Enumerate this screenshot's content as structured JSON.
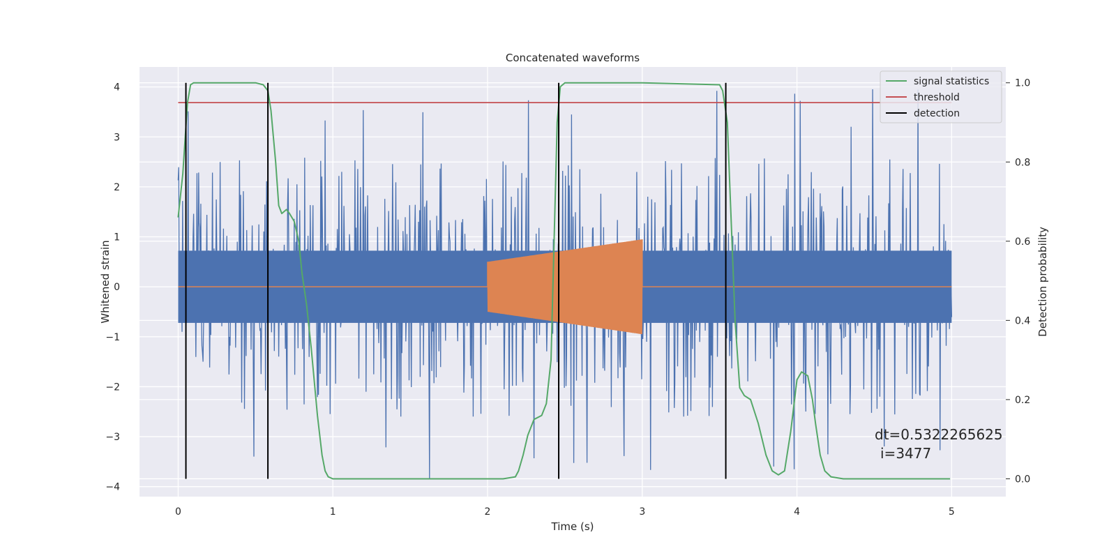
{
  "chart_data": {
    "type": "line",
    "title": "Concatenated waveforms",
    "xlabel": "Time (s)",
    "ylabel": "Whitened strain",
    "y2label": "Detection probability",
    "xlim": [
      -0.25,
      5.35
    ],
    "ylim": [
      -4.2,
      4.4
    ],
    "y2lim": [
      -0.045,
      1.04
    ],
    "xticks": [
      0,
      1,
      2,
      3,
      4,
      5
    ],
    "yticks": [
      -4,
      -3,
      -2,
      -1,
      0,
      1,
      2,
      3,
      4
    ],
    "y2ticks": [
      0.0,
      0.2,
      0.4,
      0.6,
      0.8,
      1.0
    ],
    "xtick_labels": [
      "0",
      "1",
      "2",
      "3",
      "4",
      "5"
    ],
    "ytick_labels": [
      "−4",
      "−3",
      "−2",
      "−1",
      "0",
      "1",
      "2",
      "3",
      "4"
    ],
    "y2tick_labels": [
      "0.0",
      "0.2",
      "0.4",
      "0.6",
      "0.8",
      "1.0"
    ],
    "grid": true,
    "legend_position": "top-right",
    "legend": [
      "signal statistics",
      "threshold",
      "detection"
    ],
    "annotation": {
      "line1": "dt=0.5322265625",
      "line2": "i=3477"
    },
    "colors": {
      "strain": "#4c72b0",
      "injection": "#dd8452",
      "signal_statistics": "#55a868",
      "threshold": "#c44e52",
      "detection": "#000000",
      "plot_background": "#eaeaf2",
      "grid": "#ffffff"
    },
    "series": [
      {
        "name": "signal statistics",
        "axis": "right",
        "x": [
          0.0,
          0.03,
          0.06,
          0.08,
          0.1,
          0.15,
          0.3,
          0.5,
          0.55,
          0.58,
          0.6,
          0.63,
          0.65,
          0.67,
          0.7,
          0.72,
          0.75,
          0.78,
          0.8,
          0.83,
          0.86,
          0.9,
          0.93,
          0.95,
          0.97,
          1.0,
          1.2,
          1.5,
          1.8,
          2.1,
          2.18,
          2.2,
          2.23,
          2.26,
          2.3,
          2.35,
          2.38,
          2.41,
          2.43,
          2.45,
          2.47,
          2.5,
          2.55,
          3.0,
          3.5,
          3.52,
          3.55,
          3.57,
          3.6,
          3.63,
          3.66,
          3.7,
          3.75,
          3.8,
          3.84,
          3.88,
          3.92,
          3.96,
          4.0,
          4.03,
          4.07,
          4.1,
          4.12,
          4.15,
          4.18,
          4.22,
          4.3,
          4.6,
          4.99
        ],
        "values": [
          0.66,
          0.77,
          0.95,
          0.995,
          1.0,
          1.0,
          1.0,
          1.0,
          0.995,
          0.98,
          0.93,
          0.8,
          0.69,
          0.67,
          0.68,
          0.67,
          0.65,
          0.6,
          0.52,
          0.44,
          0.33,
          0.16,
          0.06,
          0.02,
          0.005,
          0.0,
          0.0,
          0.0,
          0.0,
          0.0,
          0.005,
          0.02,
          0.06,
          0.11,
          0.15,
          0.16,
          0.19,
          0.3,
          0.6,
          0.9,
          0.99,
          1.0,
          1.0,
          1.0,
          0.995,
          0.98,
          0.9,
          0.7,
          0.4,
          0.23,
          0.21,
          0.2,
          0.14,
          0.06,
          0.02,
          0.01,
          0.02,
          0.12,
          0.25,
          0.27,
          0.26,
          0.2,
          0.14,
          0.06,
          0.02,
          0.005,
          0.0,
          0.0,
          0.0
        ]
      },
      {
        "name": "threshold",
        "axis": "right",
        "x": [
          0.0,
          5.0
        ],
        "values": [
          0.95,
          0.95
        ]
      },
      {
        "name": "detection",
        "axis": "right",
        "x": [
          0.05,
          0.58,
          2.46,
          3.54
        ],
        "values": [
          1.0,
          1.0,
          1.0,
          1.0
        ]
      },
      {
        "name": "",
        "axis": "left",
        "x_range": [
          0.0,
          5.0
        ],
        "amplitude_core": 0.85,
        "peak_range": [
          -3.85,
          4.0
        ]
      },
      {
        "name": "",
        "axis": "left",
        "x_range": [
          2.0,
          3.0
        ],
        "amplitude_range": [
          0.5,
          0.95
        ]
      }
    ]
  }
}
